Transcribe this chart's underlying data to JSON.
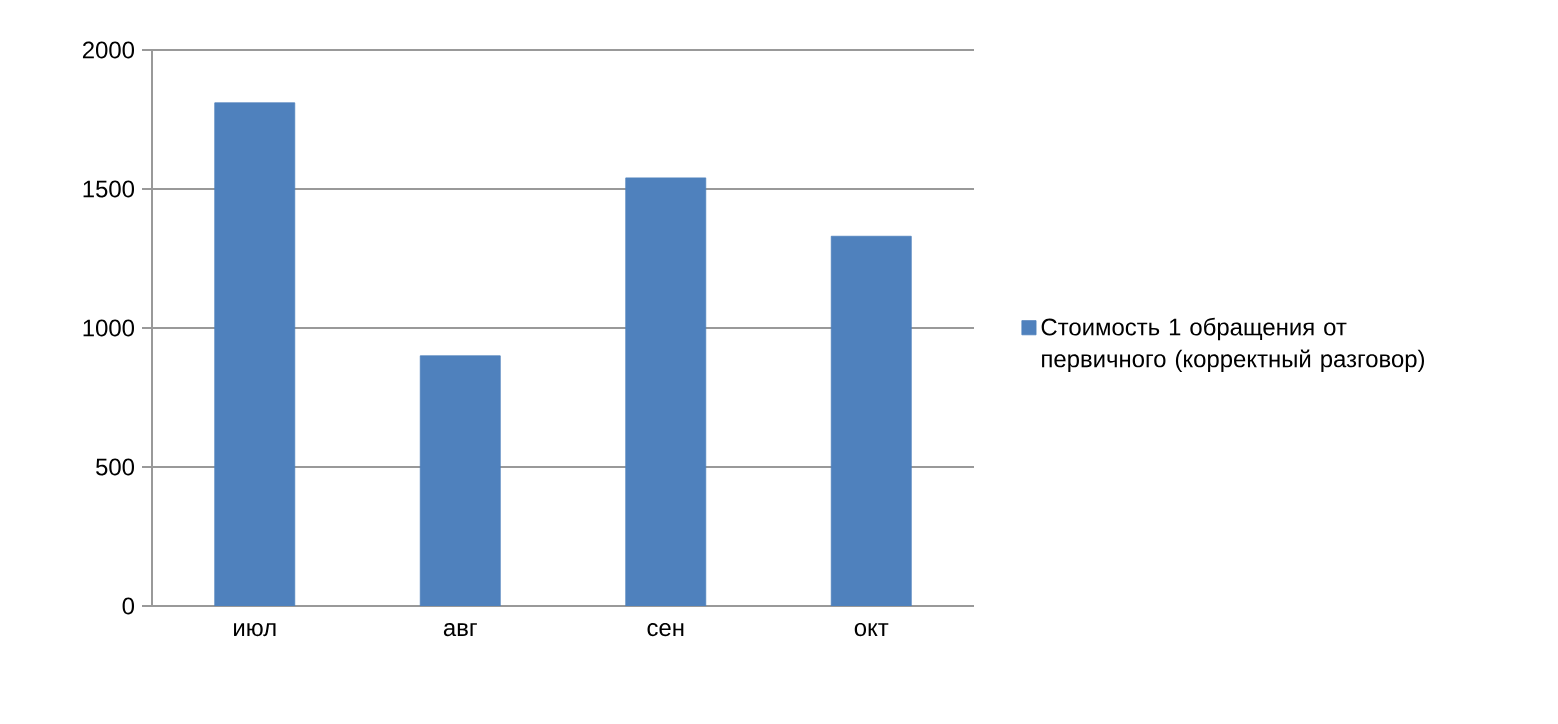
{
  "chart_data": {
    "type": "bar",
    "categories": [
      "июл",
      "авг",
      "сен",
      "окт"
    ],
    "series": [
      {
        "name": "Стоимость 1 обращения от первичного (корректный разговор)",
        "color": "#4f81bd",
        "values": [
          1810,
          900,
          1540,
          1330
        ]
      }
    ],
    "ylim": [
      0,
      2000
    ],
    "yticks": [
      0,
      500,
      1000,
      1500,
      2000
    ],
    "grid": "y",
    "legend": "right"
  }
}
